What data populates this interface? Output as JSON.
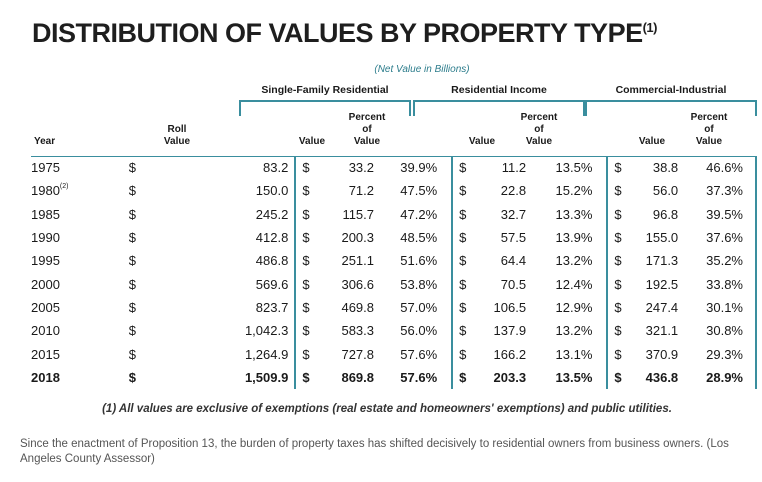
{
  "title": "DISTRIBUTION OF VALUES BY PROPERTY TYPE",
  "title_superscript": "(1)",
  "subtitle": "(Net Value in Billions)",
  "groups": {
    "sfr": "Single-Family Residential",
    "ri": "Residential Income",
    "ci": "Commercial-Industrial"
  },
  "headers": {
    "year": "Year",
    "roll_value": [
      "Roll",
      "Value"
    ],
    "value": "Value",
    "percent_of_value": [
      "Percent",
      "of",
      "Value"
    ]
  },
  "rows": [
    {
      "year": "1975",
      "year_sup": "",
      "roll": "83.2",
      "sfr_v": "33.2",
      "sfr_p": "39.9%",
      "ri_v": "11.2",
      "ri_p": "13.5%",
      "ci_v": "38.8",
      "ci_p": "46.6%"
    },
    {
      "year": "1980",
      "year_sup": "(2)",
      "roll": "150.0",
      "sfr_v": "71.2",
      "sfr_p": "47.5%",
      "ri_v": "22.8",
      "ri_p": "15.2%",
      "ci_v": "56.0",
      "ci_p": "37.3%"
    },
    {
      "year": "1985",
      "year_sup": "",
      "roll": "245.2",
      "sfr_v": "115.7",
      "sfr_p": "47.2%",
      "ri_v": "32.7",
      "ri_p": "13.3%",
      "ci_v": "96.8",
      "ci_p": "39.5%"
    },
    {
      "year": "1990",
      "year_sup": "",
      "roll": "412.8",
      "sfr_v": "200.3",
      "sfr_p": "48.5%",
      "ri_v": "57.5",
      "ri_p": "13.9%",
      "ci_v": "155.0",
      "ci_p": "37.6%"
    },
    {
      "year": "1995",
      "year_sup": "",
      "roll": "486.8",
      "sfr_v": "251.1",
      "sfr_p": "51.6%",
      "ri_v": "64.4",
      "ri_p": "13.2%",
      "ci_v": "171.3",
      "ci_p": "35.2%"
    },
    {
      "year": "2000",
      "year_sup": "",
      "roll": "569.6",
      "sfr_v": "306.6",
      "sfr_p": "53.8%",
      "ri_v": "70.5",
      "ri_p": "12.4%",
      "ci_v": "192.5",
      "ci_p": "33.8%"
    },
    {
      "year": "2005",
      "year_sup": "",
      "roll": "823.7",
      "sfr_v": "469.8",
      "sfr_p": "57.0%",
      "ri_v": "106.5",
      "ri_p": "12.9%",
      "ci_v": "247.4",
      "ci_p": "30.1%"
    },
    {
      "year": "2010",
      "year_sup": "",
      "roll": "1,042.3",
      "sfr_v": "583.3",
      "sfr_p": "56.0%",
      "ri_v": "137.9",
      "ri_p": "13.2%",
      "ci_v": "321.1",
      "ci_p": "30.8%"
    },
    {
      "year": "2015",
      "year_sup": "",
      "roll": "1,264.9",
      "sfr_v": "727.8",
      "sfr_p": "57.6%",
      "ri_v": "166.2",
      "ri_p": "13.1%",
      "ci_v": "370.9",
      "ci_p": "29.3%"
    },
    {
      "year": "2018",
      "year_sup": "",
      "roll": "1,509.9",
      "sfr_v": "869.8",
      "sfr_p": "57.6%",
      "ri_v": "203.3",
      "ri_p": "13.5%",
      "ci_v": "436.8",
      "ci_p": "28.9%",
      "bold": true
    }
  ],
  "dollar": "$",
  "footnote": "(1) All values are exclusive of exemptions (real estate and homeowners' exemptions) and public utilities.",
  "caption": "Since the enactment of Proposition 13, the burden of property taxes has shifted decisively to residential owners from business owners. (Los Angeles County Assessor)",
  "colors": {
    "accent": "#3a8e9e",
    "subtitle": "#2d7d8c"
  }
}
